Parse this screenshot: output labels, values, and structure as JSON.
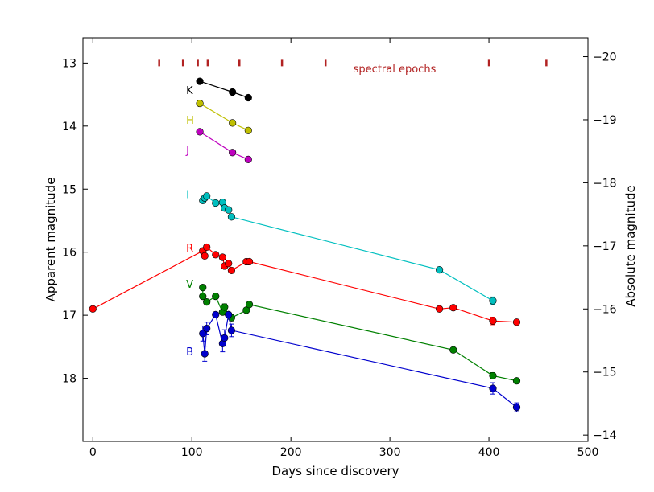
{
  "chart_data": {
    "type": "scatter",
    "xlabel": "Days since discovery",
    "ylabel": "Apparent magnitude",
    "y2label": "Absolute magnitude",
    "xlim": [
      -10,
      500
    ],
    "ylim": [
      19.0,
      12.6
    ],
    "y2lim": [
      -13.9,
      -20.3
    ],
    "x_ticks": [
      0,
      100,
      200,
      300,
      400,
      500
    ],
    "y_ticks": [
      13,
      14,
      15,
      16,
      17,
      18
    ],
    "y2_ticks": [
      -20,
      -19,
      -18,
      -17,
      -16,
      -15,
      -14
    ],
    "y2_tick_labels": [
      "−20",
      "−19",
      "−18",
      "−17",
      "−16",
      "−15",
      "−14"
    ],
    "grid": false,
    "spectral_epochs": {
      "label": "spectral epochs",
      "color": "#b22222",
      "days": [
        67,
        91,
        106,
        116,
        148,
        191,
        235,
        400,
        458
      ]
    },
    "series": [
      {
        "name": "K",
        "color": "#000000",
        "label_x": 91,
        "label_y": 13.43,
        "line": [
          [
            108,
            13.29
          ],
          [
            141,
            13.46
          ],
          [
            157,
            13.55
          ]
        ],
        "points": [
          [
            108,
            13.29,
            0
          ],
          [
            141,
            13.46,
            0
          ],
          [
            157,
            13.55,
            0
          ]
        ]
      },
      {
        "name": "H",
        "color": "#bfbf00",
        "label_x": 91,
        "label_y": 13.9,
        "line": [
          [
            108,
            13.64
          ],
          [
            141,
            13.95
          ],
          [
            157,
            14.07
          ]
        ],
        "points": [
          [
            108,
            13.64,
            0
          ],
          [
            141,
            13.95,
            0
          ],
          [
            157,
            14.07,
            0
          ]
        ]
      },
      {
        "name": "J",
        "color": "#bf00bf",
        "label_x": 91,
        "label_y": 14.37,
        "line": [
          [
            108,
            14.09
          ],
          [
            141,
            14.42
          ],
          [
            157,
            14.53
          ]
        ],
        "points": [
          [
            108,
            14.09,
            0
          ],
          [
            141,
            14.42,
            0
          ],
          [
            157,
            14.53,
            0
          ]
        ]
      },
      {
        "name": "I",
        "color": "#00bfbf",
        "label_x": 91,
        "label_y": 15.08,
        "line": [
          [
            111,
            15.18
          ],
          [
            113,
            15.14
          ],
          [
            115,
            15.11
          ],
          [
            124,
            15.22
          ],
          [
            131,
            15.21
          ],
          [
            133,
            15.3
          ],
          [
            137,
            15.33
          ],
          [
            140,
            15.44
          ],
          [
            350,
            16.28
          ],
          [
            404,
            16.77
          ]
        ],
        "points": [
          [
            111,
            15.18,
            0
          ],
          [
            113,
            15.14,
            0
          ],
          [
            115,
            15.11,
            0
          ],
          [
            124,
            15.22,
            0
          ],
          [
            131,
            15.21,
            0
          ],
          [
            133,
            15.3,
            0
          ],
          [
            137,
            15.33,
            0
          ],
          [
            140,
            15.44,
            0
          ],
          [
            350,
            16.28,
            0.03
          ],
          [
            404,
            16.77,
            0.06
          ]
        ]
      },
      {
        "name": "R",
        "color": "#ff0000",
        "label_x": 91,
        "label_y": 15.93,
        "line": [
          [
            0,
            16.9
          ],
          [
            111,
            15.98
          ],
          [
            113,
            16.06
          ],
          [
            115,
            15.92
          ],
          [
            124,
            16.04
          ],
          [
            131,
            16.08
          ],
          [
            133,
            16.22
          ],
          [
            137,
            16.18
          ],
          [
            140,
            16.29
          ],
          [
            155,
            16.15
          ],
          [
            158,
            16.15
          ],
          [
            350,
            16.9
          ],
          [
            364,
            16.88
          ],
          [
            404,
            17.09
          ],
          [
            428,
            17.11
          ]
        ],
        "points": [
          [
            0,
            16.9,
            0
          ],
          [
            111,
            15.98,
            0
          ],
          [
            113,
            16.06,
            0
          ],
          [
            115,
            15.92,
            0
          ],
          [
            124,
            16.04,
            0
          ],
          [
            131,
            16.08,
            0
          ],
          [
            133,
            16.22,
            0
          ],
          [
            137,
            16.18,
            0
          ],
          [
            140,
            16.29,
            0
          ],
          [
            155,
            16.15,
            0
          ],
          [
            158,
            16.15,
            0
          ],
          [
            350,
            16.9,
            0
          ],
          [
            364,
            16.88,
            0
          ],
          [
            404,
            17.09,
            0.06
          ],
          [
            428,
            17.11,
            0.03
          ]
        ]
      },
      {
        "name": "V",
        "color": "#008000",
        "label_x": 91,
        "label_y": 16.5,
        "line": [
          [
            111,
            16.56
          ],
          [
            111,
            16.7
          ],
          [
            115,
            16.79
          ],
          [
            124,
            16.7
          ],
          [
            131,
            16.95
          ],
          [
            133,
            16.87
          ],
          [
            137,
            16.99
          ],
          [
            140,
            17.04
          ],
          [
            155,
            16.92
          ],
          [
            158,
            16.83
          ],
          [
            364,
            17.55
          ],
          [
            404,
            17.96
          ],
          [
            428,
            18.04
          ]
        ],
        "points": [
          [
            111,
            16.56,
            0.03
          ],
          [
            111,
            16.7,
            0
          ],
          [
            115,
            16.79,
            0
          ],
          [
            124,
            16.7,
            0
          ],
          [
            131,
            16.95,
            0
          ],
          [
            133,
            16.87,
            0.05
          ],
          [
            137,
            16.99,
            0
          ],
          [
            140,
            17.04,
            0.05
          ],
          [
            155,
            16.92,
            0
          ],
          [
            158,
            16.83,
            0
          ],
          [
            364,
            17.55,
            0
          ],
          [
            404,
            17.96,
            0.05
          ],
          [
            428,
            18.04,
            0.04
          ]
        ]
      },
      {
        "name": "B",
        "color": "#0000cd",
        "label_x": 91,
        "label_y": 17.57,
        "line": [
          [
            111,
            17.29
          ],
          [
            113,
            17.61
          ],
          [
            115,
            17.21
          ],
          [
            124,
            16.99
          ],
          [
            131,
            17.45
          ],
          [
            133,
            17.36
          ],
          [
            137,
            16.99
          ],
          [
            140,
            17.24
          ],
          [
            404,
            18.16
          ],
          [
            428,
            18.46
          ]
        ],
        "points": [
          [
            111,
            17.29,
            0.12
          ],
          [
            113,
            17.61,
            0.12
          ],
          [
            115,
            17.21,
            0.1
          ],
          [
            124,
            16.99,
            0
          ],
          [
            131,
            17.45,
            0.13
          ],
          [
            133,
            17.36,
            0.13
          ],
          [
            137,
            16.99,
            0
          ],
          [
            140,
            17.24,
            0.1
          ],
          [
            404,
            18.16,
            0.09
          ],
          [
            428,
            18.46,
            0.07
          ]
        ]
      }
    ]
  }
}
